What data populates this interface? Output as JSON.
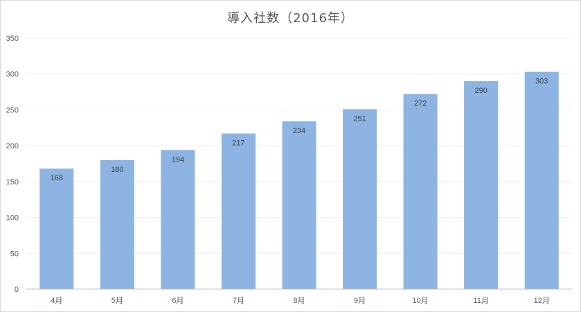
{
  "chart_data": {
    "type": "bar",
    "title": "導入社数（2016年）",
    "xlabel": "",
    "ylabel": "",
    "categories": [
      "4月",
      "5月",
      "6月",
      "7月",
      "8月",
      "9月",
      "10月",
      "11月",
      "12月"
    ],
    "values": [
      168,
      180,
      194,
      217,
      234,
      251,
      272,
      290,
      303
    ],
    "ylim": [
      0,
      350
    ],
    "yticks": [
      0,
      50,
      100,
      150,
      200,
      250,
      300,
      350
    ],
    "grid": true,
    "legend": "none",
    "data_labels": "inside-end",
    "bar_color": "#8db4e2",
    "grid_color": "#eeeeee",
    "axis_color": "#bfbfbf"
  }
}
